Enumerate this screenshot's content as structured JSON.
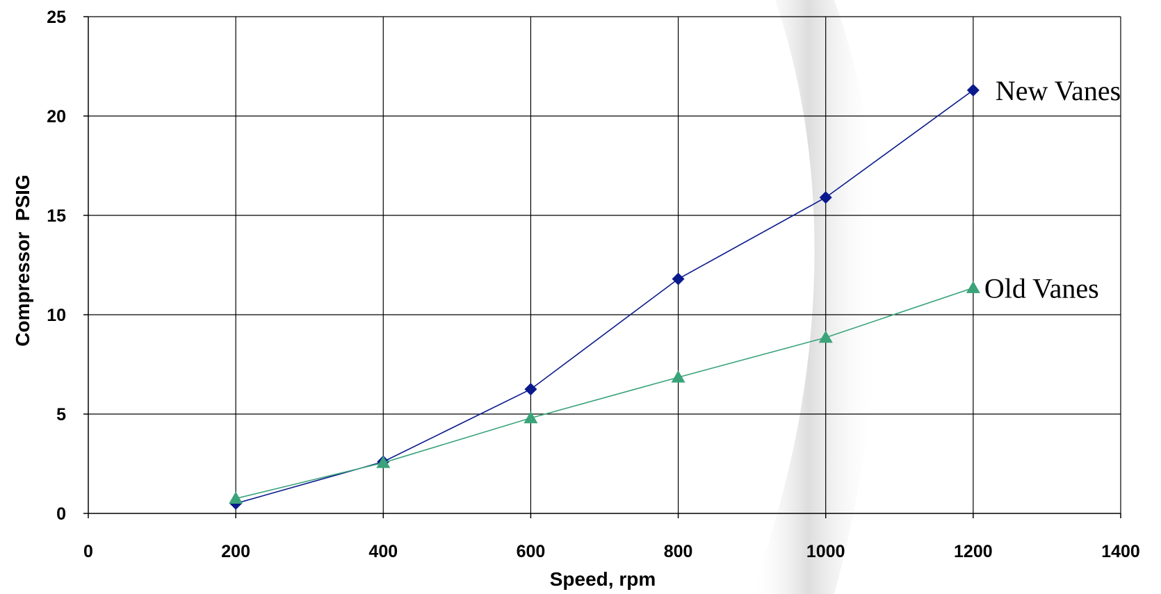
{
  "chart_data": {
    "type": "line",
    "xlabel": "Speed, rpm",
    "ylabel": "Compressor  PSIG",
    "xlim": [
      0,
      1400
    ],
    "ylim": [
      0,
      25
    ],
    "x_ticks": [
      0,
      200,
      400,
      600,
      800,
      1000,
      1200,
      1400
    ],
    "y_ticks": [
      0,
      5,
      10,
      15,
      20,
      25
    ],
    "grid": true,
    "legend": "none (series labels placed at line ends, right side)",
    "series": [
      {
        "name": "New Vanes",
        "marker": "diamond",
        "color": "#0a1a8c",
        "x": [
          200,
          400,
          600,
          800,
          1000,
          1200
        ],
        "y": [
          0.5,
          2.6,
          6.25,
          11.8,
          15.9,
          21.3
        ]
      },
      {
        "name": "Old Vanes",
        "marker": "triangle",
        "color": "#3aa37a",
        "x": [
          200,
          400,
          600,
          800,
          1000,
          1200
        ],
        "y": [
          0.75,
          2.55,
          4.8,
          6.85,
          8.85,
          11.35
        ]
      }
    ]
  },
  "colors": {
    "background": "#ffffff",
    "grid": "#000000",
    "curve_shadow": "#e4e4e4"
  }
}
